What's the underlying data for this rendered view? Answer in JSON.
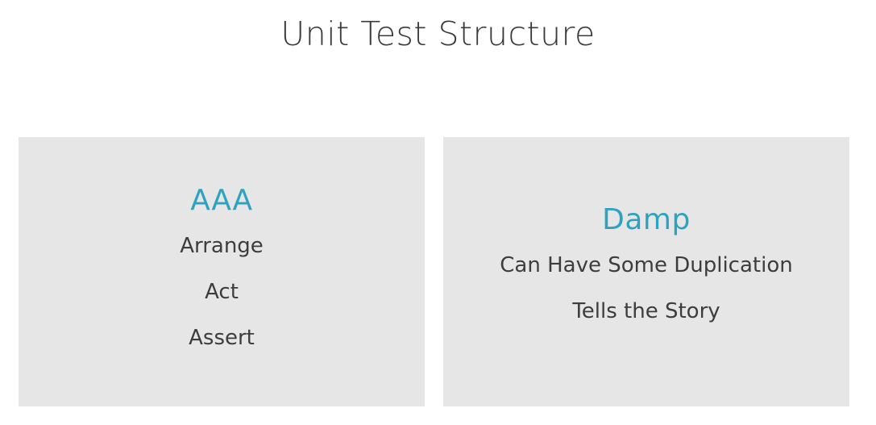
{
  "title": "Unit Test Structure",
  "panels": [
    {
      "heading": "AAA",
      "items": [
        "Arrange",
        "Act",
        "Assert"
      ]
    },
    {
      "heading": "Damp",
      "items": [
        "Can Have Some Duplication",
        "Tells the Story"
      ]
    }
  ],
  "colors": {
    "accent": "#2ea3bf",
    "panel_background": "#e6e6e6",
    "text": "#3d3d3d",
    "title": "#3a3a3a"
  }
}
